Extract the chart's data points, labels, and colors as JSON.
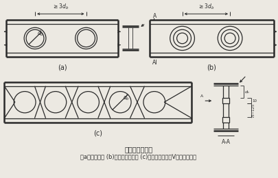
{
  "title_line1": "梁的圓形孔補强",
  "title_line2": "（a）套管補强 (b)环形補强板補强 (c)在梁腹板上加坪V形加劲肋補强",
  "bg_color": "#ece9e2",
  "line_color": "#2a2a2a",
  "label_a": "(a)",
  "label_b": "(b)",
  "label_c": "(c)"
}
